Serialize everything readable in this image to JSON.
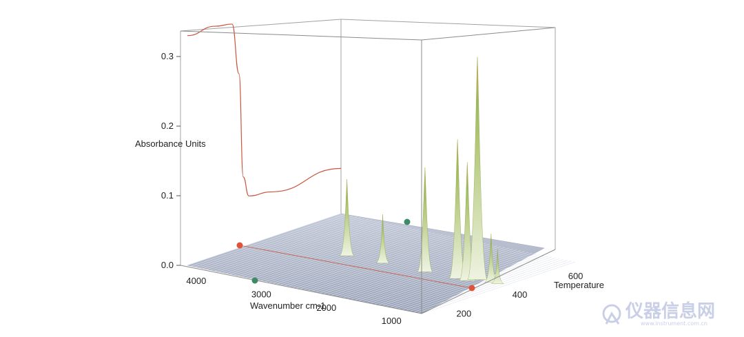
{
  "chart_data": {
    "type": "surface3d",
    "z_axis": {
      "label": "Absorbance Units",
      "range": [
        0.0,
        0.33
      ],
      "ticks": [
        {
          "value": 0.0,
          "label": "0.0"
        },
        {
          "value": 0.1,
          "label": "0.1"
        },
        {
          "value": 0.2,
          "label": "0.2"
        },
        {
          "value": 0.3,
          "label": "0.3"
        }
      ]
    },
    "x_axis": {
      "label": "Wavenumber cm-1",
      "range": [
        4200,
        600
      ],
      "ticks": [
        {
          "value": 4000,
          "label": "4000"
        },
        {
          "value": 3000,
          "label": "3000"
        },
        {
          "value": 2000,
          "label": "2000"
        },
        {
          "value": 1000,
          "label": "1000"
        }
      ]
    },
    "y_axis": {
      "label": "Temperature",
      "range": [
        100,
        650
      ],
      "ticks": [
        {
          "value": 200,
          "label": "200"
        },
        {
          "value": 400,
          "label": "400"
        },
        {
          "value": 600,
          "label": "600"
        }
      ]
    },
    "series": [
      {
        "kind": "tga_curve",
        "color": "#c8553d",
        "points": [
          {
            "temperature": 100,
            "value": 0.33
          },
          {
            "temperature": 200,
            "value": 0.33
          },
          {
            "temperature": 260,
            "value": 0.325
          },
          {
            "temperature": 285,
            "value": 0.25
          },
          {
            "temperature": 300,
            "value": 0.1
          },
          {
            "temperature": 320,
            "value": 0.07
          },
          {
            "temperature": 400,
            "value": 0.065
          },
          {
            "temperature": 650,
            "value": 0.065
          }
        ]
      },
      {
        "kind": "ir_peaks",
        "peaks": [
          {
            "wavenumber": 2950,
            "temperature": 380,
            "absorbance": 0.11
          },
          {
            "wavenumber": 2400,
            "temperature": 380,
            "absorbance": 0.07
          },
          {
            "wavenumber": 1750,
            "temperature": 380,
            "absorbance": 0.15
          },
          {
            "wavenumber": 1250,
            "temperature": 380,
            "absorbance": 0.2
          },
          {
            "wavenumber": 1100,
            "temperature": 380,
            "absorbance": 0.17
          },
          {
            "wavenumber": 1030,
            "temperature": 400,
            "absorbance": 0.32
          },
          {
            "wavenumber": 820,
            "temperature": 400,
            "absorbance": 0.07
          },
          {
            "wavenumber": 720,
            "temperature": 400,
            "absorbance": 0.05
          }
        ]
      }
    ],
    "markers": [
      {
        "color": "#e0533a",
        "position": "left-wall-base"
      },
      {
        "color": "#e0533a",
        "position": "right-front-corner"
      },
      {
        "color": "#3d8a66",
        "position": "floor-front"
      },
      {
        "color": "#3d8a66",
        "position": "floor-back"
      }
    ],
    "colors": {
      "peak_low": "#eef3e2",
      "peak_high": "#9fb85a",
      "peak_top": "#e0a64a",
      "floor": "#aeb6c7",
      "frame": "#9a9a9a"
    }
  },
  "watermark": {
    "text": "仪器信息网",
    "sub": "www.instrument.com.cn"
  }
}
